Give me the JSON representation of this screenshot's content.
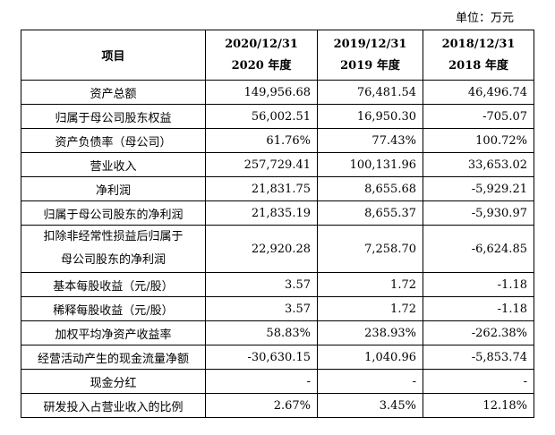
{
  "unit_label": "单位：万元",
  "header": {
    "item": "项目",
    "columns": [
      {
        "date": "2020/12/31",
        "year": "2020 年度"
      },
      {
        "date": "2019/12/31",
        "year": "2019 年度"
      },
      {
        "date": "2018/12/31",
        "year": "2018 年度"
      }
    ]
  },
  "rows": [
    {
      "label": "资产总额",
      "values": [
        "149,956.68",
        "76,481.54",
        "46,496.74"
      ]
    },
    {
      "label": "归属于母公司股东权益",
      "values": [
        "56,002.51",
        "16,950.30",
        "-705.07"
      ]
    },
    {
      "label": "资产负债率（母公司）",
      "values": [
        "61.76%",
        "77.43%",
        "100.72%"
      ]
    },
    {
      "label": "营业收入",
      "values": [
        "257,729.41",
        "100,131.96",
        "33,653.02"
      ]
    },
    {
      "label": "净利润",
      "values": [
        "21,831.75",
        "8,655.68",
        "-5,929.21"
      ]
    },
    {
      "label": "归属于母公司股东的净利润",
      "values": [
        "21,835.19",
        "8,655.37",
        "-5,930.97"
      ]
    },
    {
      "label_line1": "扣除非经常性损益后归属于",
      "label_line2": "母公司股东的净利润",
      "values": [
        "22,920.28",
        "7,258.70",
        "-6,624.85"
      ]
    },
    {
      "label": "基本每股收益（元/股）",
      "values": [
        "3.57",
        "1.72",
        "-1.18"
      ]
    },
    {
      "label": "稀释每股收益（元/股）",
      "values": [
        "3.57",
        "1.72",
        "-1.18"
      ]
    },
    {
      "label": "加权平均净资产收益率",
      "values": [
        "58.83%",
        "238.93%",
        "-262.38%"
      ]
    },
    {
      "label": "经营活动产生的现金流量净额",
      "values": [
        "-30,630.15",
        "1,040.96",
        "-5,853.74"
      ]
    },
    {
      "label": "现金分红",
      "values": [
        "-",
        "-",
        "-"
      ]
    },
    {
      "label": "研发投入占营业收入的比例",
      "values": [
        "2.67%",
        "3.45%",
        "12.18%"
      ]
    }
  ]
}
